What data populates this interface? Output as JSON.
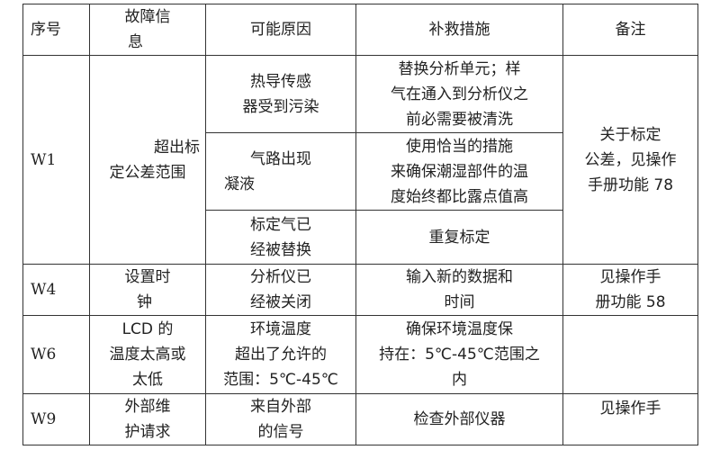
{
  "headers": [
    "序号",
    [
      "故障信",
      "息"
    ],
    "可能原因",
    "补救措施",
    "备注"
  ],
  "rows": {
    "w1": {
      "id": "W1",
      "fault": [
        "超出标",
        "定公差范围"
      ],
      "causes": [
        {
          "cause": [
            "热导传感",
            "器受到污染"
          ],
          "remedy": [
            "替换分析单元；样",
            "气在通入到分析仪之",
            "前必需要被清洗"
          ]
        },
        {
          "cause": [
            "气路出现",
            "凝液"
          ],
          "remedy": [
            "使用恰当的措施",
            "来确保潮湿部件的温",
            "度始终都比露点值高"
          ]
        },
        {
          "cause": [
            "标定气已",
            "经被替换"
          ],
          "remedy": [
            "重复标定"
          ]
        }
      ],
      "note": [
        "关于标定",
        "公差，见操作",
        "手册功能 78"
      ]
    },
    "w4": {
      "id": "W4",
      "fault": [
        "设置时",
        "钟"
      ],
      "cause": [
        "分析仪已",
        "经被关闭"
      ],
      "remedy": [
        "输入新的数据和",
        "时间"
      ],
      "note": [
        "见操作手",
        "册功能 58"
      ]
    },
    "w6": {
      "id": "W6",
      "fault": [
        "LCD 的",
        "温度太高或",
        "太低"
      ],
      "cause": [
        "环境温度",
        "超出了允许的",
        "范围：5℃-45℃"
      ],
      "remedy": [
        "确保环境温度保",
        "持在：5℃-45℃范围之",
        "内"
      ],
      "note": []
    },
    "w9": {
      "id": "W9",
      "fault": [
        "外部维",
        "护请求"
      ],
      "cause": [
        "来自外部",
        "的信号"
      ],
      "remedy": [
        "检查外部仪器"
      ],
      "note": [
        "见操作手"
      ]
    }
  }
}
